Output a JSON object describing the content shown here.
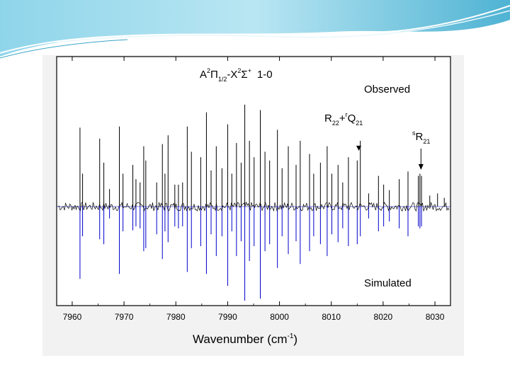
{
  "colors": {
    "header_light": "#d6f0f8",
    "header_mid": "#7ecde6",
    "header_dark": "#3aa6c8",
    "observed": "#000000",
    "simulated": "#0000cc",
    "panel_bg": "#f2f2f2"
  },
  "chart_data": {
    "type": "line",
    "title": "",
    "xlabel": "Wavenumber (cm",
    "xlabel_sup": "-1",
    "xlabel_close": ")",
    "ylabel": "",
    "xlim": [
      7957,
      8033
    ],
    "x_ticks": [
      7960,
      7970,
      7980,
      7990,
      8000,
      8010,
      8020,
      8030
    ],
    "grid": false,
    "band_label": {
      "A": "A",
      "A_sup": "2",
      "Pi": "Π",
      "Pi_sub": "1/2",
      "dash": "-X",
      "X_sup": "2",
      "Sigma": "Σ",
      "Sigma_sup": "+",
      "band": "1-0"
    },
    "series": [
      {
        "name": "Observed",
        "direction": "up",
        "baseline_noise": 0.04,
        "lines": [
          {
            "x": 7961.5,
            "i": 0.72
          },
          {
            "x": 7962.0,
            "i": 0.3
          },
          {
            "x": 7965.3,
            "i": 0.62
          },
          {
            "x": 7966.1,
            "i": 0.4
          },
          {
            "x": 7967.2,
            "i": 0.16
          },
          {
            "x": 7969.1,
            "i": 0.73
          },
          {
            "x": 7969.8,
            "i": 0.3
          },
          {
            "x": 7971.7,
            "i": 0.38
          },
          {
            "x": 7972.3,
            "i": 0.25
          },
          {
            "x": 7973.1,
            "i": 0.22
          },
          {
            "x": 7973.8,
            "i": 0.55
          },
          {
            "x": 7974.2,
            "i": 0.42
          },
          {
            "x": 7976.3,
            "i": 0.22
          },
          {
            "x": 7977.4,
            "i": 0.57
          },
          {
            "x": 7977.9,
            "i": 0.3
          },
          {
            "x": 7978.5,
            "i": 0.65
          },
          {
            "x": 7979.8,
            "i": 0.2
          },
          {
            "x": 7980.5,
            "i": 0.2
          },
          {
            "x": 7981.3,
            "i": 0.22
          },
          {
            "x": 7982.2,
            "i": 0.73
          },
          {
            "x": 7983.0,
            "i": 0.5
          },
          {
            "x": 7984.8,
            "i": 0.45
          },
          {
            "x": 7985.9,
            "i": 0.86
          },
          {
            "x": 7986.8,
            "i": 0.33
          },
          {
            "x": 7987.8,
            "i": 0.55
          },
          {
            "x": 7988.9,
            "i": 0.35
          },
          {
            "x": 7990.0,
            "i": 0.75
          },
          {
            "x": 7990.8,
            "i": 0.3
          },
          {
            "x": 7991.7,
            "i": 0.58
          },
          {
            "x": 7992.6,
            "i": 0.4
          },
          {
            "x": 7993.3,
            "i": 0.93
          },
          {
            "x": 7994.2,
            "i": 0.6
          },
          {
            "x": 7995.1,
            "i": 0.45
          },
          {
            "x": 7996.3,
            "i": 0.88
          },
          {
            "x": 7997.2,
            "i": 0.5
          },
          {
            "x": 7998.1,
            "i": 0.42
          },
          {
            "x": 7999.6,
            "i": 0.7
          },
          {
            "x": 8000.5,
            "i": 0.35
          },
          {
            "x": 8001.7,
            "i": 0.55
          },
          {
            "x": 8003.2,
            "i": 0.38
          },
          {
            "x": 8004.0,
            "i": 0.6
          },
          {
            "x": 8005.8,
            "i": 0.48
          },
          {
            "x": 8006.6,
            "i": 0.3
          },
          {
            "x": 8007.9,
            "i": 0.4
          },
          {
            "x": 8009.2,
            "i": 0.55
          },
          {
            "x": 8010.1,
            "i": 0.3
          },
          {
            "x": 8011.3,
            "i": 0.38
          },
          {
            "x": 8012.2,
            "i": 0.22
          },
          {
            "x": 8013.3,
            "i": 0.45
          },
          {
            "x": 8015.0,
            "i": 0.42
          },
          {
            "x": 8015.6,
            "i": 0.6
          },
          {
            "x": 8017.2,
            "i": 0.12
          },
          {
            "x": 8019.1,
            "i": 0.28
          },
          {
            "x": 8020.1,
            "i": 0.2
          },
          {
            "x": 8021.2,
            "i": 0.15
          },
          {
            "x": 8023.1,
            "i": 0.25
          },
          {
            "x": 8024.8,
            "i": 0.32
          },
          {
            "x": 8026.8,
            "i": 0.28
          },
          {
            "x": 8027.1,
            "i": 0.3
          },
          {
            "x": 8027.4,
            "i": 0.28
          },
          {
            "x": 8029.0,
            "i": 0.1
          },
          {
            "x": 8030.5,
            "i": 0.12
          },
          {
            "x": 8031.8,
            "i": 0.08
          }
        ]
      },
      {
        "name": "Simulated",
        "direction": "down",
        "lines": [
          {
            "x": 7961.5,
            "i": 0.73
          },
          {
            "x": 7962.0,
            "i": 0.3
          },
          {
            "x": 7965.3,
            "i": 0.33
          },
          {
            "x": 7966.1,
            "i": 0.38
          },
          {
            "x": 7967.2,
            "i": 0.12
          },
          {
            "x": 7969.1,
            "i": 0.68
          },
          {
            "x": 7969.8,
            "i": 0.25
          },
          {
            "x": 7971.7,
            "i": 0.24
          },
          {
            "x": 7972.3,
            "i": 0.2
          },
          {
            "x": 7973.1,
            "i": 0.22
          },
          {
            "x": 7973.8,
            "i": 0.45
          },
          {
            "x": 7974.2,
            "i": 0.42
          },
          {
            "x": 7976.3,
            "i": 0.28
          },
          {
            "x": 7977.4,
            "i": 0.53
          },
          {
            "x": 7977.9,
            "i": 0.25
          },
          {
            "x": 7978.5,
            "i": 0.36
          },
          {
            "x": 7979.8,
            "i": 0.2
          },
          {
            "x": 7980.5,
            "i": 0.22
          },
          {
            "x": 7981.3,
            "i": 0.2
          },
          {
            "x": 7982.2,
            "i": 0.66
          },
          {
            "x": 7983.0,
            "i": 0.42
          },
          {
            "x": 7984.8,
            "i": 0.4
          },
          {
            "x": 7985.9,
            "i": 0.68
          },
          {
            "x": 7986.8,
            "i": 0.28
          },
          {
            "x": 7987.8,
            "i": 0.5
          },
          {
            "x": 7988.9,
            "i": 0.3
          },
          {
            "x": 7990.0,
            "i": 0.8
          },
          {
            "x": 7990.8,
            "i": 0.25
          },
          {
            "x": 7991.7,
            "i": 0.5
          },
          {
            "x": 7992.6,
            "i": 0.35
          },
          {
            "x": 7993.3,
            "i": 0.95
          },
          {
            "x": 7994.2,
            "i": 0.55
          },
          {
            "x": 7995.1,
            "i": 0.4
          },
          {
            "x": 7996.3,
            "i": 0.93
          },
          {
            "x": 7997.2,
            "i": 0.45
          },
          {
            "x": 7998.1,
            "i": 0.38
          },
          {
            "x": 7999.6,
            "i": 0.62
          },
          {
            "x": 8000.5,
            "i": 0.3
          },
          {
            "x": 8001.7,
            "i": 0.48
          },
          {
            "x": 8003.2,
            "i": 0.35
          },
          {
            "x": 8004.0,
            "i": 0.58
          },
          {
            "x": 8005.8,
            "i": 0.45
          },
          {
            "x": 8006.6,
            "i": 0.3
          },
          {
            "x": 8007.9,
            "i": 0.38
          },
          {
            "x": 8009.2,
            "i": 0.5
          },
          {
            "x": 8010.1,
            "i": 0.28
          },
          {
            "x": 8011.3,
            "i": 0.36
          },
          {
            "x": 8012.2,
            "i": 0.22
          },
          {
            "x": 8013.3,
            "i": 0.4
          },
          {
            "x": 8015.0,
            "i": 0.38
          },
          {
            "x": 8015.6,
            "i": 0.3
          },
          {
            "x": 8017.2,
            "i": 0.12
          },
          {
            "x": 8019.1,
            "i": 0.25
          },
          {
            "x": 8020.1,
            "i": 0.2
          },
          {
            "x": 8021.2,
            "i": 0.15
          },
          {
            "x": 8023.1,
            "i": 0.22
          },
          {
            "x": 8024.8,
            "i": 0.3
          },
          {
            "x": 8026.8,
            "i": 0.2
          },
          {
            "x": 8027.1,
            "i": 0.22
          },
          {
            "x": 8027.4,
            "i": 0.2
          }
        ]
      }
    ],
    "annotations": [
      {
        "id": "r22-q21",
        "R": "R",
        "R_sub": "22",
        "plus": "+",
        "Q_sup": "r",
        "Q": "Q",
        "Q_sub": "21",
        "x": 8015.3,
        "arrow": "triangle"
      },
      {
        "id": "s-r21",
        "R_sup": "s",
        "R": "R",
        "R_sub": "21",
        "x": 8027.3,
        "arrow": "line"
      }
    ]
  }
}
